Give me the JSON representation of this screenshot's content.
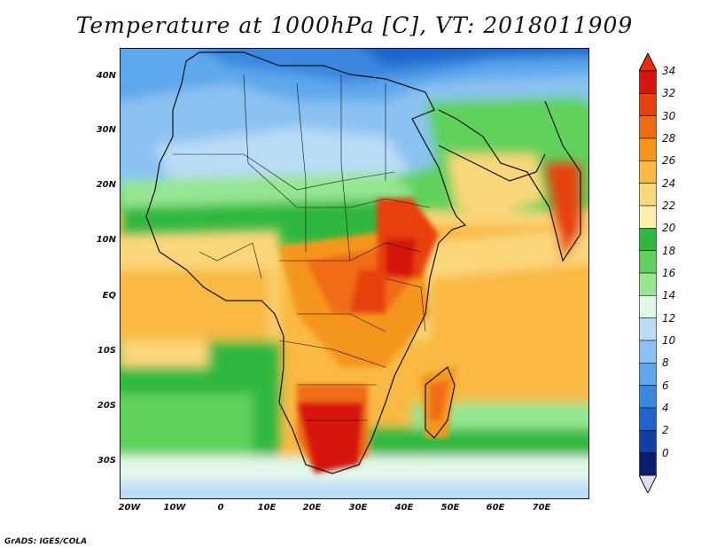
{
  "title": "Temperature at 1000hPa [C], VT: 2018011909",
  "credit": "GrADS: IGES/COLA",
  "lat_labels": [
    "40N",
    "30N",
    "20N",
    "10N",
    "EQ",
    "10S",
    "20S",
    "30S"
  ],
  "lon_labels": [
    "20W",
    "10W",
    "0",
    "10E",
    "20E",
    "30E",
    "40E",
    "50E",
    "60E",
    "70E"
  ],
  "colorbar": {
    "labels": [
      "34",
      "32",
      "30",
      "28",
      "26",
      "24",
      "22",
      "20",
      "18",
      "16",
      "14",
      "12",
      "10",
      "8",
      "6",
      "4",
      "2",
      "0"
    ],
    "colors": [
      "#d6160a",
      "#e8410f",
      "#f06c12",
      "#f5961a",
      "#f9b943",
      "#fbd77c",
      "#fff0b0",
      "#2eb841",
      "#5ed25c",
      "#96e692",
      "#e3f7e8",
      "#b9dcf7",
      "#8bc2f2",
      "#5ea7ec",
      "#3a87e0",
      "#1f63cc",
      "#1040a6",
      "#0a1e6e"
    ],
    "over_color": "#ee2a0d",
    "under_color": "#e6dcf6"
  }
}
